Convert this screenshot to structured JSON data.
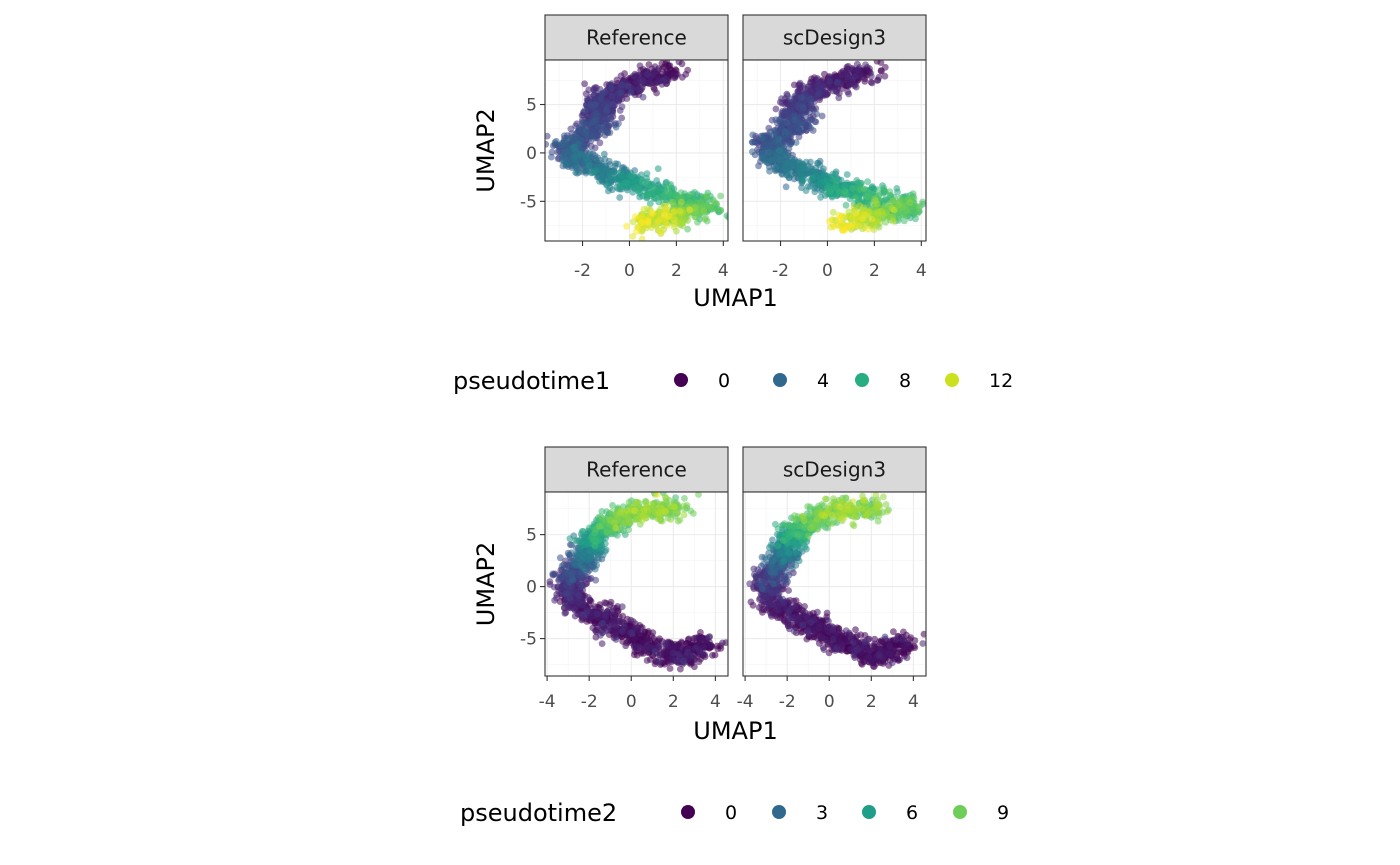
{
  "chart_data": [
    {
      "type": "scatter",
      "facets": [
        "Reference",
        "scDesign3"
      ],
      "xlabel": "UMAP1",
      "ylabel": "UMAP2",
      "xlim": [
        -3.6,
        4.2
      ],
      "ylim": [
        -9.1,
        9.6
      ],
      "x_ticks": [
        -2,
        0,
        2,
        4
      ],
      "y_ticks": [
        -5,
        0,
        5
      ],
      "color_variable": "pseudotime1",
      "legend": {
        "title": "pseudotime1",
        "position": "bottom",
        "entries": [
          {
            "label": "0",
            "color": "#440154"
          },
          {
            "label": "4",
            "color": "#31688e"
          },
          {
            "label": "8",
            "color": "#26ad81"
          },
          {
            "label": "12",
            "color": "#cbe11e"
          }
        ]
      },
      "color_range": [
        0,
        13
      ],
      "trajectory": [
        {
          "x": 1.9,
          "y": 8.6,
          "t": 0.0
        },
        {
          "x": 0.3,
          "y": 7.3,
          "t": 0.6
        },
        {
          "x": -1.0,
          "y": 6.0,
          "t": 1.3
        },
        {
          "x": -1.3,
          "y": 4.2,
          "t": 2.0
        },
        {
          "x": -1.5,
          "y": 2.4,
          "t": 2.6
        },
        {
          "x": -2.6,
          "y": 0.8,
          "t": 3.0
        },
        {
          "x": -2.3,
          "y": -0.6,
          "t": 4.0
        },
        {
          "x": -1.0,
          "y": -2.0,
          "t": 5.0
        },
        {
          "x": 0.5,
          "y": -3.6,
          "t": 7.0
        },
        {
          "x": 2.2,
          "y": -4.8,
          "t": 8.5
        },
        {
          "x": 3.5,
          "y": -5.6,
          "t": 9.0
        },
        {
          "x": 1.8,
          "y": -6.6,
          "t": 11.0
        },
        {
          "x": 0.5,
          "y": -7.4,
          "t": 12.5
        }
      ],
      "grid": true,
      "grid_major_x": [
        -2,
        0,
        2,
        4
      ],
      "grid_major_y": [
        -5,
        0,
        5
      ],
      "grid_minor_x": [
        -3,
        -1,
        1,
        3
      ],
      "grid_minor_y": [
        -7.5,
        -2.5,
        2.5,
        7.5
      ]
    },
    {
      "type": "scatter",
      "facets": [
        "Reference",
        "scDesign3"
      ],
      "xlabel": "UMAP1",
      "ylabel": "UMAP2",
      "xlim": [
        -4.1,
        4.6
      ],
      "ylim": [
        -8.6,
        9.1
      ],
      "x_ticks": [
        -4,
        -2,
        0,
        2,
        4
      ],
      "y_ticks": [
        -5,
        0,
        5
      ],
      "color_variable": "pseudotime2",
      "legend": {
        "title": "pseudotime2",
        "position": "bottom",
        "entries": [
          {
            "label": "0",
            "color": "#440154"
          },
          {
            "label": "3",
            "color": "#31688e"
          },
          {
            "label": "6",
            "color": "#1f9e89"
          },
          {
            "label": "9",
            "color": "#6ece58"
          }
        ]
      },
      "color_range": [
        0,
        11
      ],
      "trajectory": [
        {
          "x": 3.8,
          "y": -5.3,
          "t": 0.0
        },
        {
          "x": 2.2,
          "y": -6.8,
          "t": 0.0
        },
        {
          "x": 0.5,
          "y": -5.2,
          "t": 0.0
        },
        {
          "x": -1.3,
          "y": -3.2,
          "t": 0.2
        },
        {
          "x": -2.7,
          "y": -1.5,
          "t": 0.5
        },
        {
          "x": -3.0,
          "y": 0.8,
          "t": 1.5
        },
        {
          "x": -2.2,
          "y": 2.8,
          "t": 3.5
        },
        {
          "x": -1.7,
          "y": 5.0,
          "t": 6.5
        },
        {
          "x": -0.5,
          "y": 6.7,
          "t": 8.5
        },
        {
          "x": 1.0,
          "y": 7.4,
          "t": 9.0
        },
        {
          "x": 2.3,
          "y": 7.4,
          "t": 8.5
        }
      ],
      "grid": true,
      "grid_major_x": [
        -4,
        -2,
        0,
        2,
        4
      ],
      "grid_major_y": [
        -5,
        0,
        5
      ],
      "grid_minor_x": [
        -3,
        -1,
        1,
        3
      ],
      "grid_minor_y": [
        -7.5,
        -2.5,
        2.5,
        7.5
      ]
    }
  ]
}
